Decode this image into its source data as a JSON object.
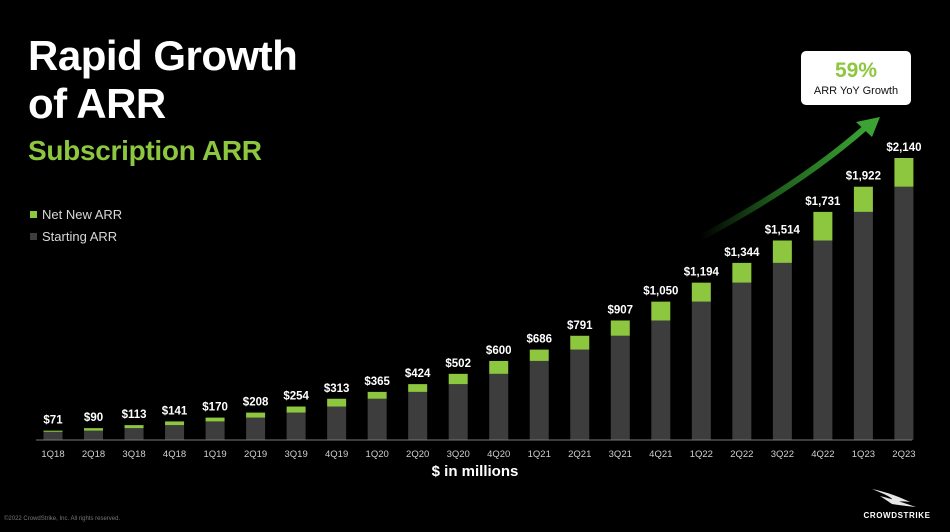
{
  "title_lines": [
    "Rapid Growth",
    "of ARR"
  ],
  "subtitle": "Subscription ARR",
  "callout": {
    "value": "59%",
    "label": "ARR YoY Growth"
  },
  "units_label": "$ in millions",
  "copyright": "©2022 CrowdStrike, Inc. All rights reserved.",
  "logo_text": "CROWDSTRIKE",
  "colors": {
    "net_new": "#8dc63f",
    "starting": "#3d3d3d",
    "background": "#000000",
    "arrow": "#2f8a2a",
    "baseline": "#777777"
  },
  "chart_data": {
    "type": "bar",
    "stacked": true,
    "categories": [
      "1Q18",
      "2Q18",
      "3Q18",
      "4Q18",
      "1Q19",
      "2Q19",
      "3Q19",
      "4Q19",
      "1Q20",
      "2Q20",
      "3Q20",
      "4Q20",
      "1Q21",
      "2Q21",
      "3Q21",
      "4Q21",
      "1Q22",
      "2Q22",
      "3Q22",
      "4Q22",
      "1Q23",
      "2Q23"
    ],
    "series": [
      {
        "name": "Starting ARR",
        "values": [
          62,
          71,
          90,
          113,
          141,
          170,
          208,
          254,
          313,
          365,
          424,
          502,
          600,
          686,
          791,
          907,
          1050,
          1194,
          1344,
          1514,
          1731,
          1922
        ]
      },
      {
        "name": "Net New ARR",
        "values": [
          9,
          19,
          23,
          28,
          29,
          38,
          46,
          59,
          52,
          59,
          78,
          98,
          86,
          105,
          116,
          143,
          144,
          150,
          170,
          217,
          191,
          218
        ]
      }
    ],
    "totals": [
      71,
      90,
      113,
      141,
      170,
      208,
      254,
      313,
      365,
      424,
      502,
      600,
      686,
      791,
      907,
      1050,
      1194,
      1344,
      1514,
      1731,
      1922,
      2140
    ],
    "total_labels": [
      "$71",
      "$90",
      "$113",
      "$141",
      "$170",
      "$208",
      "$254",
      "$313",
      "$365",
      "$424",
      "$502",
      "$600",
      "$686",
      "$791",
      "$907",
      "$1,050",
      "$1,194",
      "$1,344",
      "$1,514",
      "$1,731",
      "$1,922",
      "$2,140"
    ],
    "ylim": [
      0,
      2140
    ],
    "legend": [
      "Net New ARR",
      "Starting ARR"
    ],
    "legend_position": "top-left",
    "grid": false
  }
}
